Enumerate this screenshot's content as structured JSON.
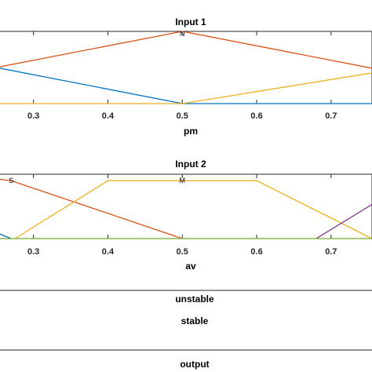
{
  "chart_data": [
    {
      "type": "line",
      "title": "Input 1",
      "xlabel": "pm",
      "xlim": [
        0.255,
        0.755
      ],
      "ylim": [
        0,
        1
      ],
      "ticks": [
        "0.3",
        "0.4",
        "0.5",
        "0.6",
        "0.7"
      ],
      "tick_values": [
        0.3,
        0.4,
        0.5,
        0.6,
        0.7
      ],
      "series": [
        {
          "color": "#0072BD",
          "x": [
            0.2,
            0.5,
            0.8
          ],
          "y": [
            0.6,
            0.0,
            0.0
          ]
        },
        {
          "color": "#D95319",
          "x": [
            0.2,
            0.5,
            0.8
          ],
          "y": [
            0.4,
            1.0,
            0.4
          ],
          "label": "N"
        },
        {
          "color": "#EDB120",
          "x": [
            0.2,
            0.5,
            0.8
          ],
          "y": [
            0.0,
            0.0,
            0.5
          ]
        }
      ],
      "mf_labels": [
        {
          "text": "N",
          "x": 0.5,
          "y": 0.97
        }
      ]
    },
    {
      "type": "line",
      "title": "Input 2",
      "xlabel": "av",
      "xlim": [
        0.255,
        0.755
      ],
      "ylim": [
        0,
        1
      ],
      "ticks": [
        "0.3",
        "0.4",
        "0.5",
        "0.6",
        "0.7"
      ],
      "tick_values": [
        0.3,
        0.4,
        0.5,
        0.6,
        0.7
      ],
      "series": [
        {
          "color": "#0072BD",
          "x": [
            0.2,
            0.255,
            0.27
          ],
          "y": [
            0.15,
            0.07,
            0.0
          ]
        },
        {
          "color": "#D95319",
          "x": [
            0.2,
            0.27,
            0.5
          ],
          "y": [
            1.0,
            0.9,
            0.0
          ],
          "label": "S"
        },
        {
          "color": "#EDB120",
          "x": [
            0.275,
            0.4,
            0.6,
            0.755
          ],
          "y": [
            0.0,
            0.9,
            0.9,
            0.0
          ],
          "label": "M"
        },
        {
          "color": "#7E2F8E",
          "x": [
            0.68,
            0.755
          ],
          "y": [
            0.0,
            0.53
          ]
        },
        {
          "color": "#77AC30",
          "x": [
            0.255,
            0.755
          ],
          "y": [
            0.0,
            0.0
          ]
        }
      ],
      "mf_labels": [
        {
          "text": "S",
          "x": 0.27,
          "y": 0.9
        },
        {
          "text": "M",
          "x": 0.5,
          "y": 0.9
        }
      ]
    }
  ],
  "output_section": {
    "labels": [
      "unstable",
      "stable"
    ],
    "title": "output"
  }
}
